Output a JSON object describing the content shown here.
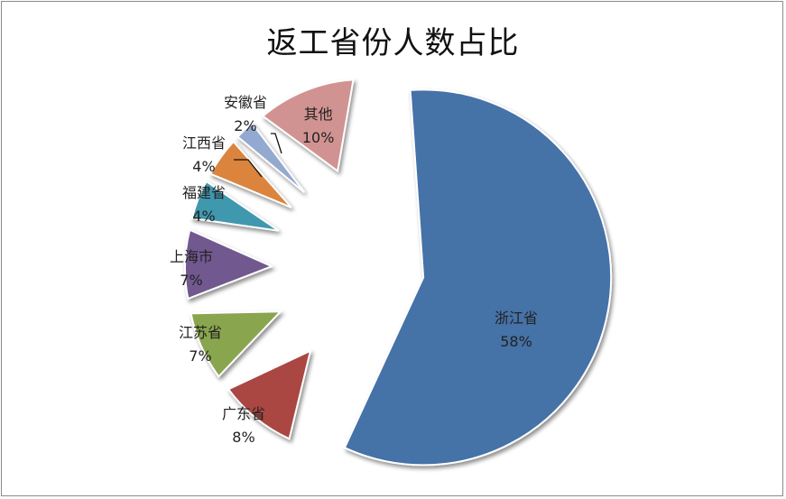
{
  "chart_data": {
    "type": "pie",
    "title": "返工省份人数占比",
    "slices": [
      {
        "name": "浙江省",
        "value": 58,
        "percent_label": "58%",
        "color": "#4572A7",
        "label_pos": "inside"
      },
      {
        "name": "广东省",
        "value": 8,
        "percent_label": "8%",
        "color": "#AA4643",
        "label_pos": "outside"
      },
      {
        "name": "江苏省",
        "value": 7,
        "percent_label": "7%",
        "color": "#89A54E",
        "label_pos": "outside"
      },
      {
        "name": "上海市",
        "value": 7,
        "percent_label": "7%",
        "color": "#71588F",
        "label_pos": "outside"
      },
      {
        "name": "福建省",
        "value": 4,
        "percent_label": "4%",
        "color": "#4198AF",
        "label_pos": "outside"
      },
      {
        "name": "江西省",
        "value": 4,
        "percent_label": "4%",
        "color": "#DB843D",
        "label_pos": "outside"
      },
      {
        "name": "安徽省",
        "value": 2,
        "percent_label": "2%",
        "color": "#93A9CF",
        "label_pos": "outside"
      },
      {
        "name": "其他",
        "value": 10,
        "percent_label": "10%",
        "color": "#D19392",
        "label_pos": "inside"
      }
    ],
    "exploded": true
  }
}
